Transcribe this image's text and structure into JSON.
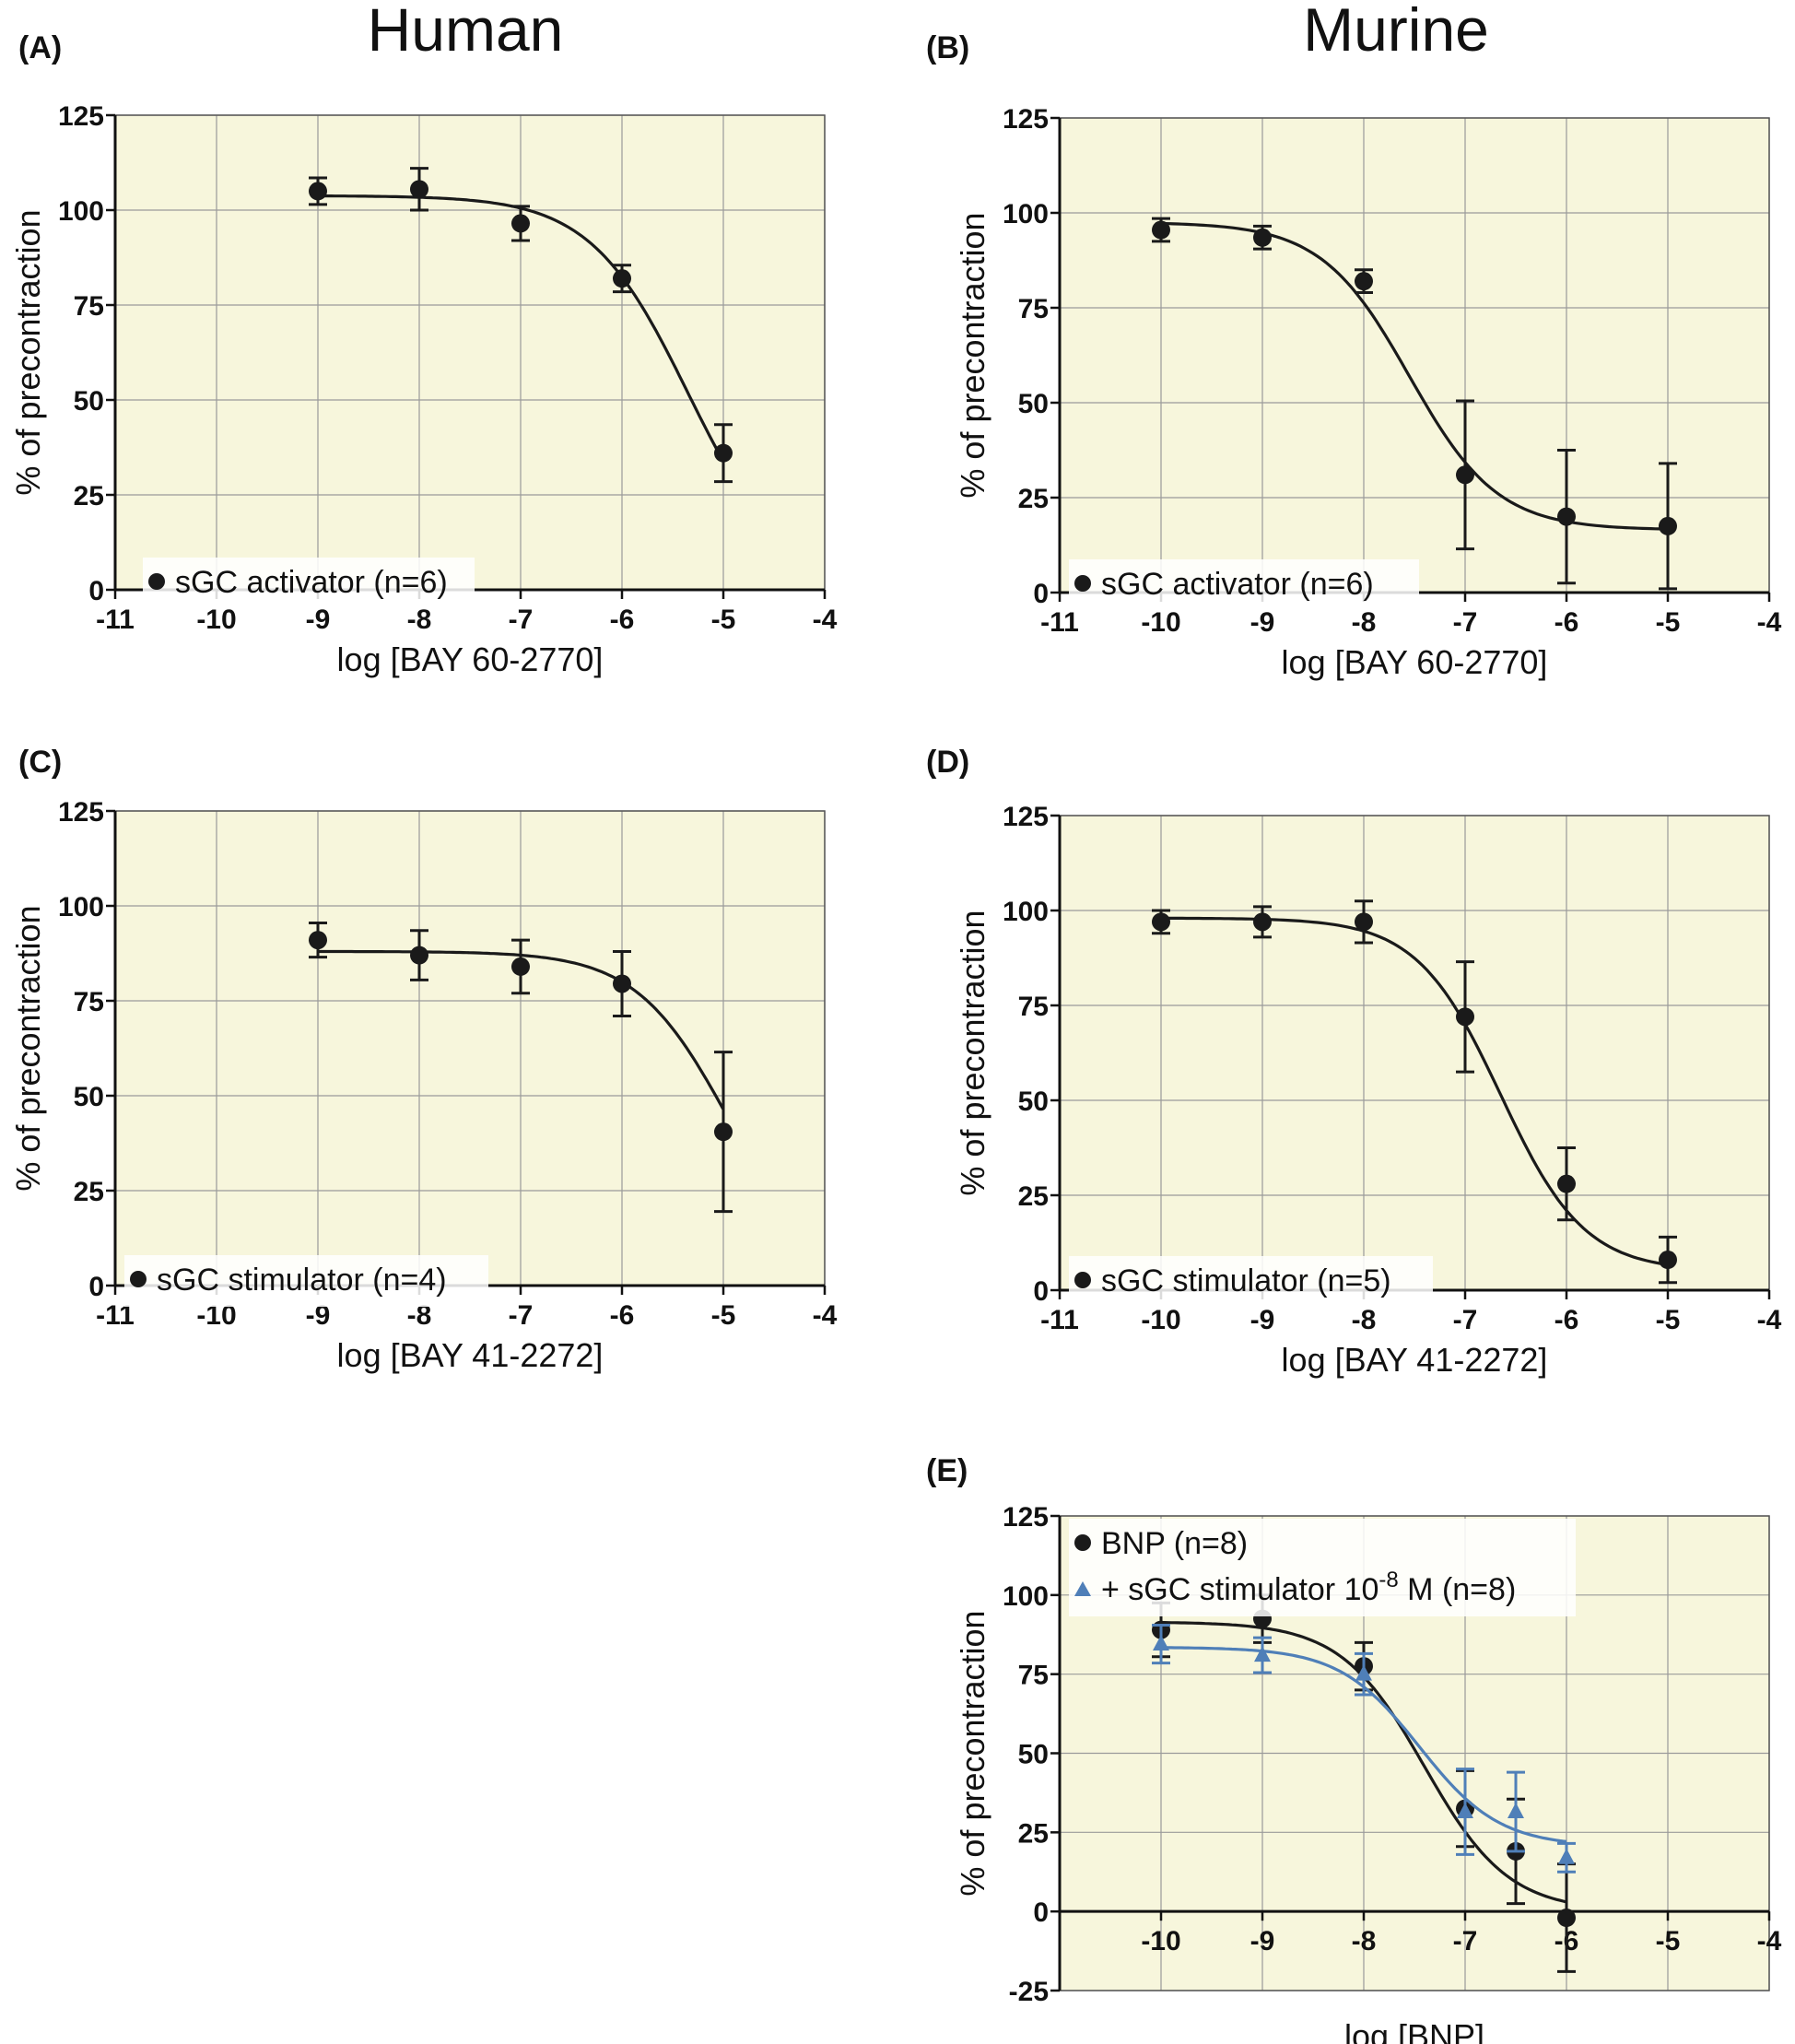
{
  "headings": {
    "left": "Human",
    "right": "Murine"
  },
  "colors": {
    "plot_bg": "#f7f6dc",
    "grid": "#9a9a9a",
    "black_series": "#1a1a1a",
    "blue_series": "#4f7fb8"
  },
  "chart_data": [
    {
      "panel": "(A)",
      "type": "scatter",
      "column": "Human",
      "xlabel": "log [BAY 60-2770]",
      "ylabel": "% of precontraction",
      "xlim": [
        -11,
        -4
      ],
      "ylim": [
        0,
        125
      ],
      "xticks": [
        -11,
        -10,
        -9,
        -8,
        -7,
        -6,
        -5,
        -4
      ],
      "yticks": [
        0,
        25,
        50,
        75,
        100,
        125
      ],
      "legend_position": "bottom-left",
      "series": [
        {
          "name": "sGC activator (n=6)",
          "marker": "circle",
          "color": "#1a1a1a",
          "x": [
            -9,
            -8,
            -7,
            -6,
            -5
          ],
          "y": [
            105,
            105.5,
            96.5,
            82,
            36
          ],
          "err": [
            3.5,
            5.5,
            4.5,
            3.5,
            7.5
          ],
          "fit": {
            "top": 103.8,
            "bottom": 0,
            "logec50": -5.35,
            "hill": 0.9,
            "x_range": [
              -9,
              -5
            ]
          }
        }
      ]
    },
    {
      "panel": "(B)",
      "type": "scatter",
      "column": "Murine",
      "xlabel": "log [BAY 60-2770]",
      "ylabel": "% of precontraction",
      "xlim": [
        -11,
        -4
      ],
      "ylim": [
        0,
        125
      ],
      "xticks": [
        -11,
        -10,
        -9,
        -8,
        -7,
        -6,
        -5,
        -4
      ],
      "yticks": [
        0,
        25,
        50,
        75,
        100,
        125
      ],
      "legend_position": "bottom-left",
      "series": [
        {
          "name": "sGC activator (n=6)",
          "marker": "circle",
          "color": "#1a1a1a",
          "x": [
            -10,
            -9,
            -8,
            -7,
            -6,
            -5
          ],
          "y": [
            95.5,
            93.5,
            82,
            31,
            20,
            17.5
          ],
          "err": [
            3,
            3,
            3,
            19.5,
            17.5,
            16.5
          ],
          "fit": {
            "top": 97.5,
            "bottom": 16.5,
            "logec50": -7.55,
            "hill": 1.0,
            "x_range": [
              -10,
              -5
            ]
          }
        }
      ]
    },
    {
      "panel": "(C)",
      "type": "scatter",
      "column": "Human",
      "xlabel": "log [BAY 41-2272]",
      "ylabel": "% of precontraction",
      "xlim": [
        -11,
        -4
      ],
      "ylim": [
        0,
        125
      ],
      "xticks": [
        -11,
        -10,
        -9,
        -8,
        -7,
        -6,
        -5,
        -4
      ],
      "yticks": [
        0,
        25,
        50,
        75,
        100,
        125
      ],
      "legend_position": "bottom-left",
      "series": [
        {
          "name": "sGC stimulator (n=4)",
          "marker": "circle",
          "color": "#1a1a1a",
          "x": [
            -9,
            -8,
            -7,
            -6,
            -5
          ],
          "y": [
            91,
            87,
            84,
            79.5,
            40.5
          ],
          "err": [
            4.5,
            6.5,
            7,
            8.5,
            21
          ],
          "fit": {
            "top": 88,
            "bottom": 0,
            "logec50": -4.95,
            "hill": 0.95,
            "x_range": [
              -9,
              -5
            ]
          }
        }
      ]
    },
    {
      "panel": "(D)",
      "type": "scatter",
      "column": "Murine",
      "xlabel": "log [BAY 41-2272]",
      "ylabel": "% of precontraction",
      "xlim": [
        -11,
        -4
      ],
      "ylim": [
        0,
        125
      ],
      "xticks": [
        -11,
        -10,
        -9,
        -8,
        -7,
        -6,
        -5,
        -4
      ],
      "yticks": [
        0,
        25,
        50,
        75,
        100,
        125
      ],
      "legend_position": "bottom-left",
      "series": [
        {
          "name": "sGC stimulator (n=5)",
          "marker": "circle",
          "color": "#1a1a1a",
          "x": [
            -10,
            -9,
            -8,
            -7,
            -6,
            -5
          ],
          "y": [
            97,
            97,
            97,
            72,
            28,
            8
          ],
          "err": [
            3,
            4,
            5.5,
            14.5,
            9.5,
            6
          ],
          "fit": {
            "top": 98,
            "bottom": 5,
            "logec50": -6.65,
            "hill": 1.05,
            "x_range": [
              -10,
              -5
            ]
          }
        }
      ]
    },
    {
      "panel": "(E)",
      "type": "scatter",
      "column": "Murine",
      "xlabel": "log [BNP]",
      "ylabel": "% of precontraction",
      "xlim": [
        -11,
        -4
      ],
      "ylim": [
        -25,
        125
      ],
      "xticks": [
        -10,
        -9,
        -8,
        -7,
        -6,
        -5,
        -4
      ],
      "yticks": [
        -25,
        0,
        25,
        50,
        75,
        100,
        125
      ],
      "legend_position": "top-left",
      "series": [
        {
          "name": "BNP (n=8)",
          "marker": "circle",
          "color": "#1a1a1a",
          "x": [
            -10,
            -9,
            -8,
            -7,
            -6.5,
            -6
          ],
          "y": [
            89,
            92.5,
            77.5,
            32.5,
            19,
            -2
          ],
          "err": [
            8.5,
            7.5,
            7.5,
            12,
            16.5,
            17
          ],
          "fit": {
            "top": 91.5,
            "bottom": 0,
            "logec50": -7.4,
            "hill": 1.05,
            "x_range": [
              -10,
              -6
            ]
          }
        },
        {
          "name_prefix": "+ sGC stimulator 10",
          "name_exp": "-8",
          "name_suffix": " M (n=8)",
          "marker": "triangle",
          "color": "#4f7fb8",
          "x": [
            -10,
            -9,
            -8,
            -7,
            -6.5,
            -6
          ],
          "y": [
            84.5,
            81,
            75,
            31.5,
            31.5,
            17
          ],
          "err": [
            6,
            5.5,
            6.5,
            13.5,
            12.5,
            4.5
          ],
          "fit": {
            "top": 83.5,
            "bottom": 20.5,
            "logec50": -7.45,
            "hill": 1.1,
            "x_range": [
              -10,
              -6
            ]
          }
        }
      ]
    }
  ]
}
